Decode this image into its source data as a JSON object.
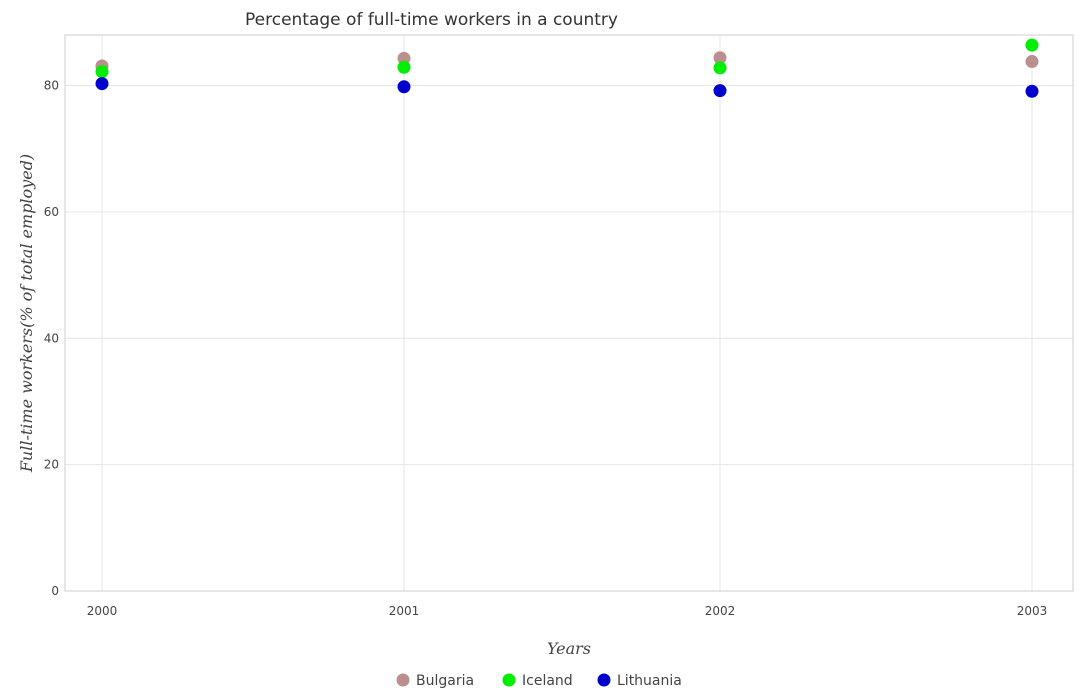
{
  "chart_data": {
    "type": "scatter",
    "title": "Percentage of full-time workers in a country",
    "xlabel": "Years",
    "ylabel": "Full-time workers(% of total employed)",
    "categories": [
      "2000",
      "2001",
      "2002",
      "2003"
    ],
    "ylim": [
      0,
      88
    ],
    "yticks": [
      0,
      20,
      40,
      60,
      80
    ],
    "ytick_labels": [
      "0",
      "20",
      "40",
      "60",
      "80"
    ],
    "grid": true,
    "legend_position": "bottom",
    "series": [
      {
        "name": "Bulgaria",
        "color": "#bc8f8f",
        "values": [
          83.1,
          84.3,
          84.4,
          83.8
        ]
      },
      {
        "name": "Iceland",
        "color": "#00ee00",
        "values": [
          82.2,
          82.9,
          82.8,
          86.4
        ]
      },
      {
        "name": "Lithuania",
        "color": "#0000cd",
        "values": [
          80.3,
          79.8,
          79.2,
          79.1
        ]
      }
    ]
  }
}
